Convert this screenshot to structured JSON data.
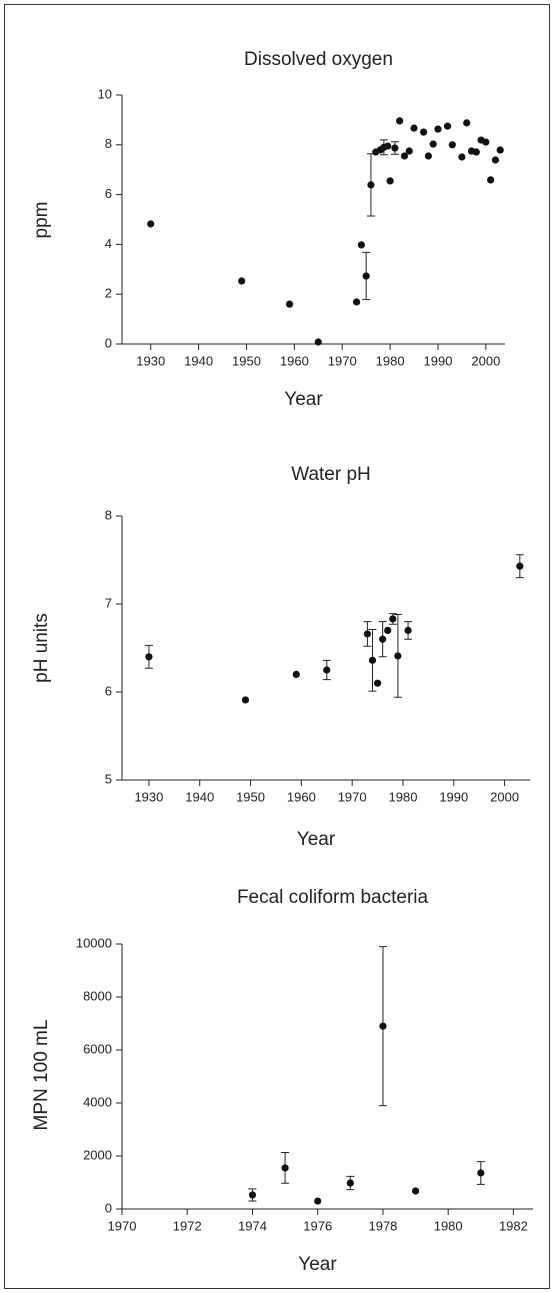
{
  "chart_data": [
    {
      "type": "scatter",
      "title": "Dissolved oxygen",
      "xlabel": "Year",
      "ylabel": "ppm",
      "color": "#111111",
      "x": [
        1930,
        1949,
        1959,
        1965,
        1973,
        1974,
        1975,
        1976,
        1977,
        1978,
        1978.7,
        1979.5,
        1980,
        1981,
        1982,
        1983,
        1984,
        1985,
        1987,
        1988,
        1989,
        1990,
        1992,
        1993,
        1995,
        1996,
        1997,
        1998,
        1999,
        2000,
        2001,
        2002,
        2003
      ],
      "values": [
        4.82,
        2.53,
        1.6,
        0.08,
        1.69,
        3.98,
        2.73,
        6.39,
        7.71,
        7.8,
        7.9,
        7.95,
        6.55,
        7.87,
        8.96,
        7.55,
        7.75,
        8.67,
        8.51,
        7.55,
        8.03,
        8.63,
        8.75,
        8.0,
        7.51,
        8.88,
        7.75,
        7.71,
        8.19,
        8.11,
        6.59,
        7.39,
        7.79
      ],
      "errors": [
        null,
        null,
        null,
        null,
        null,
        null,
        0.95,
        1.25,
        null,
        null,
        0.3,
        null,
        null,
        0.25,
        null,
        null,
        null,
        null,
        null,
        null,
        null,
        null,
        null,
        null,
        null,
        null,
        null,
        null,
        null,
        null,
        null,
        null,
        null
      ],
      "xlim": [
        1924,
        2004
      ],
      "xticks": [
        1930,
        1940,
        1950,
        1960,
        1970,
        1980,
        1990,
        2000
      ],
      "ylim": [
        0,
        10
      ],
      "yticks": [
        0,
        2,
        4,
        6,
        8,
        10
      ]
    },
    {
      "type": "scatter",
      "title": "Water pH",
      "xlabel": "Year",
      "ylabel": "pH units",
      "color": "#111111",
      "x": [
        1930,
        1949,
        1959,
        1965,
        1973,
        1974,
        1975,
        1976,
        1977,
        1978,
        1979,
        1981,
        2003
      ],
      "values": [
        6.4,
        5.91,
        6.2,
        6.25,
        6.66,
        6.36,
        6.1,
        6.6,
        6.7,
        6.83,
        6.41,
        6.7,
        7.43
      ],
      "errors": [
        0.13,
        null,
        null,
        0.11,
        0.14,
        0.35,
        null,
        0.2,
        null,
        0.06,
        0.47,
        0.1,
        0.13
      ],
      "xlim": [
        1924.7,
        2005
      ],
      "xticks": [
        1930,
        1940,
        1950,
        1960,
        1970,
        1980,
        1990,
        2000
      ],
      "ylim": [
        5,
        8
      ],
      "yticks": [
        5,
        6,
        7,
        8
      ]
    },
    {
      "type": "scatter",
      "title": "Fecal coliform bacteria",
      "xlabel": "Year",
      "ylabel": "MPN 100 mL",
      "color": "#111111",
      "x": [
        1974,
        1975,
        1976,
        1977,
        1978,
        1979,
        1981
      ],
      "values": [
        530,
        1550,
        300,
        980,
        6900,
        680,
        1360
      ],
      "errors": [
        230,
        580,
        null,
        250,
        3000,
        null,
        430
      ],
      "xlim": [
        1970,
        1982.6
      ],
      "xticks": [
        1970,
        1972,
        1974,
        1976,
        1978,
        1980,
        1982
      ],
      "ylim": [
        0,
        10000
      ],
      "yticks": [
        0,
        2000,
        4000,
        6000,
        8000,
        10000
      ]
    }
  ]
}
